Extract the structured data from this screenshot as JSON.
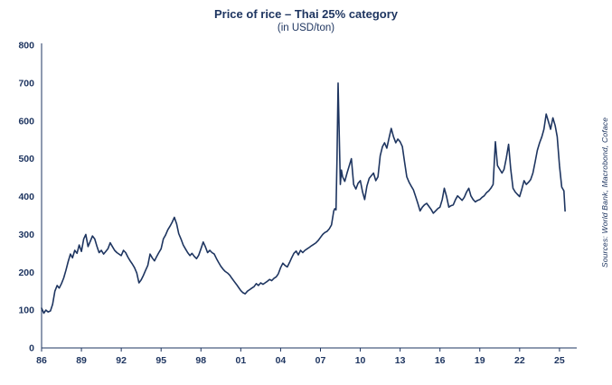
{
  "header": {
    "title": "Price of rice – Thai 25% category",
    "subtitle": "(in USD/ton)"
  },
  "source_note": "Sources: World Bank, Macrobond, Coface",
  "colors": {
    "accent": "#1e3560",
    "line": "#1e3560",
    "axis": "#1e3560",
    "background": "#ffffff"
  },
  "chart_data": {
    "type": "line",
    "title": "Price of rice – Thai 25% category",
    "subtitle": "(in USD/ton)",
    "ylabel": "USD/ton",
    "grid": false,
    "legend": "none",
    "xlim": [
      1986,
      2026.3
    ],
    "ylim": [
      0,
      800
    ],
    "y_ticks": [
      0,
      100,
      200,
      300,
      400,
      500,
      600,
      700,
      800
    ],
    "x_ticks": [
      {
        "value": 1986,
        "label": "86"
      },
      {
        "value": 1989,
        "label": "89"
      },
      {
        "value": 1992,
        "label": "92"
      },
      {
        "value": 1995,
        "label": "95"
      },
      {
        "value": 1998,
        "label": "98"
      },
      {
        "value": 2001,
        "label": "01"
      },
      {
        "value": 2004,
        "label": "04"
      },
      {
        "value": 2007,
        "label": "07"
      },
      {
        "value": 2010,
        "label": "10"
      },
      {
        "value": 2013,
        "label": "13"
      },
      {
        "value": 2016,
        "label": "16"
      },
      {
        "value": 2019,
        "label": "19"
      },
      {
        "value": 2022,
        "label": "22"
      },
      {
        "value": 2025,
        "label": "25"
      }
    ],
    "series": [
      {
        "name": "Thai 25% rice price (USD/ton)",
        "points": [
          [
            1986.0,
            105
          ],
          [
            1986.17,
            92
          ],
          [
            1986.33,
            100
          ],
          [
            1986.5,
            95
          ],
          [
            1986.67,
            98
          ],
          [
            1986.83,
            115
          ],
          [
            1987.0,
            150
          ],
          [
            1987.17,
            165
          ],
          [
            1987.33,
            158
          ],
          [
            1987.5,
            170
          ],
          [
            1987.67,
            185
          ],
          [
            1987.83,
            205
          ],
          [
            1988.0,
            228
          ],
          [
            1988.17,
            248
          ],
          [
            1988.33,
            238
          ],
          [
            1988.5,
            258
          ],
          [
            1988.67,
            250
          ],
          [
            1988.83,
            272
          ],
          [
            1989.0,
            255
          ],
          [
            1989.17,
            288
          ],
          [
            1989.33,
            300
          ],
          [
            1989.5,
            268
          ],
          [
            1989.67,
            282
          ],
          [
            1989.83,
            296
          ],
          [
            1990.0,
            288
          ],
          [
            1990.17,
            268
          ],
          [
            1990.33,
            252
          ],
          [
            1990.5,
            258
          ],
          [
            1990.67,
            248
          ],
          [
            1990.83,
            255
          ],
          [
            1991.0,
            262
          ],
          [
            1991.17,
            278
          ],
          [
            1991.33,
            268
          ],
          [
            1991.5,
            258
          ],
          [
            1991.67,
            252
          ],
          [
            1991.83,
            248
          ],
          [
            1992.0,
            244
          ],
          [
            1992.17,
            258
          ],
          [
            1992.33,
            252
          ],
          [
            1992.5,
            240
          ],
          [
            1992.67,
            230
          ],
          [
            1992.83,
            222
          ],
          [
            1993.0,
            212
          ],
          [
            1993.17,
            198
          ],
          [
            1993.33,
            172
          ],
          [
            1993.5,
            180
          ],
          [
            1993.67,
            192
          ],
          [
            1993.83,
            205
          ],
          [
            1994.0,
            218
          ],
          [
            1994.17,
            248
          ],
          [
            1994.33,
            238
          ],
          [
            1994.5,
            230
          ],
          [
            1994.67,
            242
          ],
          [
            1994.83,
            252
          ],
          [
            1995.0,
            262
          ],
          [
            1995.17,
            288
          ],
          [
            1995.33,
            298
          ],
          [
            1995.5,
            312
          ],
          [
            1995.67,
            322
          ],
          [
            1995.83,
            332
          ],
          [
            1996.0,
            345
          ],
          [
            1996.17,
            328
          ],
          [
            1996.33,
            302
          ],
          [
            1996.5,
            288
          ],
          [
            1996.67,
            272
          ],
          [
            1996.83,
            262
          ],
          [
            1997.0,
            252
          ],
          [
            1997.17,
            244
          ],
          [
            1997.33,
            250
          ],
          [
            1997.5,
            242
          ],
          [
            1997.67,
            236
          ],
          [
            1997.83,
            245
          ],
          [
            1998.0,
            262
          ],
          [
            1998.17,
            280
          ],
          [
            1998.33,
            268
          ],
          [
            1998.5,
            252
          ],
          [
            1998.67,
            258
          ],
          [
            1998.83,
            252
          ],
          [
            1999.0,
            248
          ],
          [
            1999.17,
            236
          ],
          [
            1999.33,
            226
          ],
          [
            1999.5,
            216
          ],
          [
            1999.67,
            208
          ],
          [
            1999.83,
            202
          ],
          [
            2000.0,
            198
          ],
          [
            2000.17,
            192
          ],
          [
            2000.33,
            184
          ],
          [
            2000.5,
            176
          ],
          [
            2000.67,
            168
          ],
          [
            2000.83,
            160
          ],
          [
            2001.0,
            152
          ],
          [
            2001.17,
            146
          ],
          [
            2001.33,
            143
          ],
          [
            2001.5,
            150
          ],
          [
            2001.67,
            154
          ],
          [
            2001.83,
            158
          ],
          [
            2002.0,
            162
          ],
          [
            2002.17,
            170
          ],
          [
            2002.33,
            165
          ],
          [
            2002.5,
            172
          ],
          [
            2002.67,
            168
          ],
          [
            2002.83,
            172
          ],
          [
            2003.0,
            176
          ],
          [
            2003.17,
            181
          ],
          [
            2003.33,
            178
          ],
          [
            2003.5,
            184
          ],
          [
            2003.67,
            188
          ],
          [
            2003.83,
            196
          ],
          [
            2004.0,
            212
          ],
          [
            2004.17,
            224
          ],
          [
            2004.33,
            218
          ],
          [
            2004.5,
            214
          ],
          [
            2004.67,
            226
          ],
          [
            2004.83,
            238
          ],
          [
            2005.0,
            250
          ],
          [
            2005.17,
            256
          ],
          [
            2005.33,
            246
          ],
          [
            2005.5,
            258
          ],
          [
            2005.67,
            252
          ],
          [
            2005.83,
            258
          ],
          [
            2006.0,
            262
          ],
          [
            2006.17,
            266
          ],
          [
            2006.33,
            270
          ],
          [
            2006.5,
            274
          ],
          [
            2006.67,
            278
          ],
          [
            2006.83,
            284
          ],
          [
            2007.0,
            292
          ],
          [
            2007.17,
            300
          ],
          [
            2007.33,
            305
          ],
          [
            2007.5,
            308
          ],
          [
            2007.67,
            315
          ],
          [
            2007.83,
            325
          ],
          [
            2008.0,
            362
          ],
          [
            2008.08,
            368
          ],
          [
            2008.17,
            365
          ],
          [
            2008.25,
            500
          ],
          [
            2008.33,
            700
          ],
          [
            2008.42,
            560
          ],
          [
            2008.5,
            432
          ],
          [
            2008.58,
            470
          ],
          [
            2008.67,
            452
          ],
          [
            2008.83,
            440
          ],
          [
            2009.0,
            462
          ],
          [
            2009.17,
            482
          ],
          [
            2009.33,
            500
          ],
          [
            2009.5,
            432
          ],
          [
            2009.67,
            420
          ],
          [
            2009.83,
            435
          ],
          [
            2010.0,
            442
          ],
          [
            2010.17,
            412
          ],
          [
            2010.33,
            392
          ],
          [
            2010.5,
            428
          ],
          [
            2010.67,
            448
          ],
          [
            2010.83,
            455
          ],
          [
            2011.0,
            462
          ],
          [
            2011.17,
            442
          ],
          [
            2011.33,
            452
          ],
          [
            2011.5,
            508
          ],
          [
            2011.67,
            532
          ],
          [
            2011.83,
            542
          ],
          [
            2012.0,
            528
          ],
          [
            2012.17,
            555
          ],
          [
            2012.33,
            580
          ],
          [
            2012.5,
            558
          ],
          [
            2012.67,
            542
          ],
          [
            2012.83,
            552
          ],
          [
            2013.0,
            545
          ],
          [
            2013.17,
            532
          ],
          [
            2013.33,
            492
          ],
          [
            2013.5,
            452
          ],
          [
            2013.67,
            438
          ],
          [
            2013.83,
            428
          ],
          [
            2014.0,
            418
          ],
          [
            2014.17,
            400
          ],
          [
            2014.33,
            382
          ],
          [
            2014.5,
            362
          ],
          [
            2014.67,
            372
          ],
          [
            2014.83,
            378
          ],
          [
            2015.0,
            382
          ],
          [
            2015.17,
            374
          ],
          [
            2015.33,
            366
          ],
          [
            2015.5,
            356
          ],
          [
            2015.67,
            362
          ],
          [
            2015.83,
            368
          ],
          [
            2016.0,
            372
          ],
          [
            2016.17,
            392
          ],
          [
            2016.33,
            422
          ],
          [
            2016.5,
            400
          ],
          [
            2016.67,
            372
          ],
          [
            2016.83,
            376
          ],
          [
            2017.0,
            378
          ],
          [
            2017.17,
            392
          ],
          [
            2017.33,
            402
          ],
          [
            2017.5,
            396
          ],
          [
            2017.67,
            390
          ],
          [
            2017.83,
            398
          ],
          [
            2018.0,
            412
          ],
          [
            2018.17,
            422
          ],
          [
            2018.33,
            402
          ],
          [
            2018.5,
            392
          ],
          [
            2018.67,
            386
          ],
          [
            2018.83,
            390
          ],
          [
            2019.0,
            392
          ],
          [
            2019.17,
            398
          ],
          [
            2019.33,
            402
          ],
          [
            2019.5,
            410
          ],
          [
            2019.67,
            415
          ],
          [
            2019.83,
            422
          ],
          [
            2020.0,
            432
          ],
          [
            2020.17,
            545
          ],
          [
            2020.33,
            482
          ],
          [
            2020.5,
            472
          ],
          [
            2020.67,
            462
          ],
          [
            2020.83,
            472
          ],
          [
            2021.0,
            502
          ],
          [
            2021.17,
            538
          ],
          [
            2021.33,
            472
          ],
          [
            2021.5,
            422
          ],
          [
            2021.67,
            412
          ],
          [
            2021.83,
            406
          ],
          [
            2022.0,
            400
          ],
          [
            2022.17,
            420
          ],
          [
            2022.33,
            442
          ],
          [
            2022.5,
            432
          ],
          [
            2022.67,
            438
          ],
          [
            2022.83,
            445
          ],
          [
            2023.0,
            462
          ],
          [
            2023.17,
            492
          ],
          [
            2023.33,
            522
          ],
          [
            2023.5,
            542
          ],
          [
            2023.67,
            558
          ],
          [
            2023.83,
            578
          ],
          [
            2024.0,
            618
          ],
          [
            2024.17,
            598
          ],
          [
            2024.33,
            578
          ],
          [
            2024.5,
            608
          ],
          [
            2024.67,
            588
          ],
          [
            2024.83,
            558
          ],
          [
            2025.0,
            482
          ],
          [
            2025.17,
            425
          ],
          [
            2025.33,
            415
          ],
          [
            2025.42,
            362
          ]
        ]
      }
    ]
  }
}
